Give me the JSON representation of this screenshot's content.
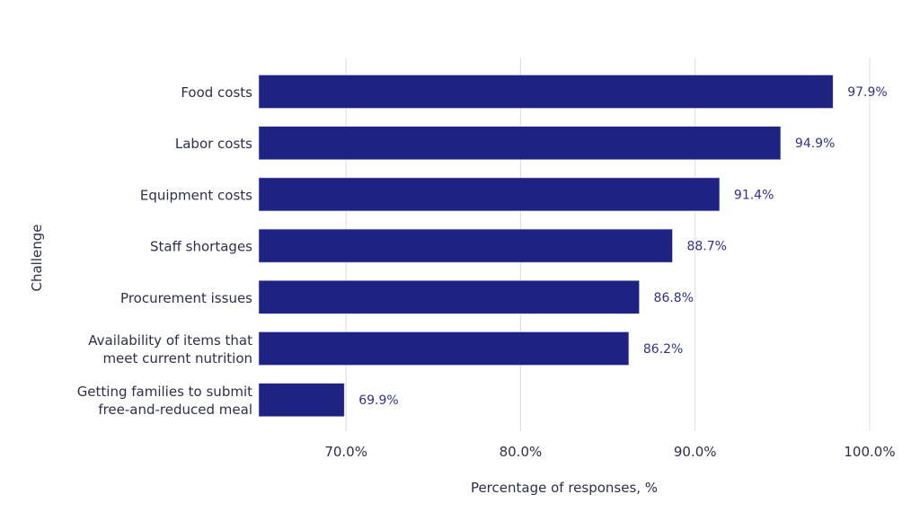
{
  "chart_data": {
    "type": "bar",
    "orientation": "horizontal",
    "categories": [
      [
        "Food costs"
      ],
      [
        "Labor costs"
      ],
      [
        "Equipment costs"
      ],
      [
        "Staff shortages"
      ],
      [
        "Procurement issues"
      ],
      [
        "Availability of items that",
        "meet current nutrition"
      ],
      [
        "Getting families to submit",
        "free-and-reduced meal"
      ]
    ],
    "values": [
      97.9,
      94.9,
      91.4,
      88.7,
      86.8,
      86.2,
      69.9
    ],
    "data_labels": [
      "97.9%",
      "94.9%",
      "91.4%",
      "88.7%",
      "86.8%",
      "86.2%",
      "69.9%"
    ],
    "xlabel": "Percentage of responses, %",
    "ylabel": "Challenge",
    "xlim": [
      65,
      100
    ],
    "xticks": [
      70,
      80,
      90,
      100
    ],
    "xtick_labels": [
      "70.0%",
      "80.0%",
      "90.0%",
      "100.0%"
    ],
    "grid": "vertical",
    "colors": {
      "bar": "#1e2282",
      "label": "#2e3192",
      "text": "#2b2f4e",
      "grid": "#dcdcdc"
    }
  }
}
